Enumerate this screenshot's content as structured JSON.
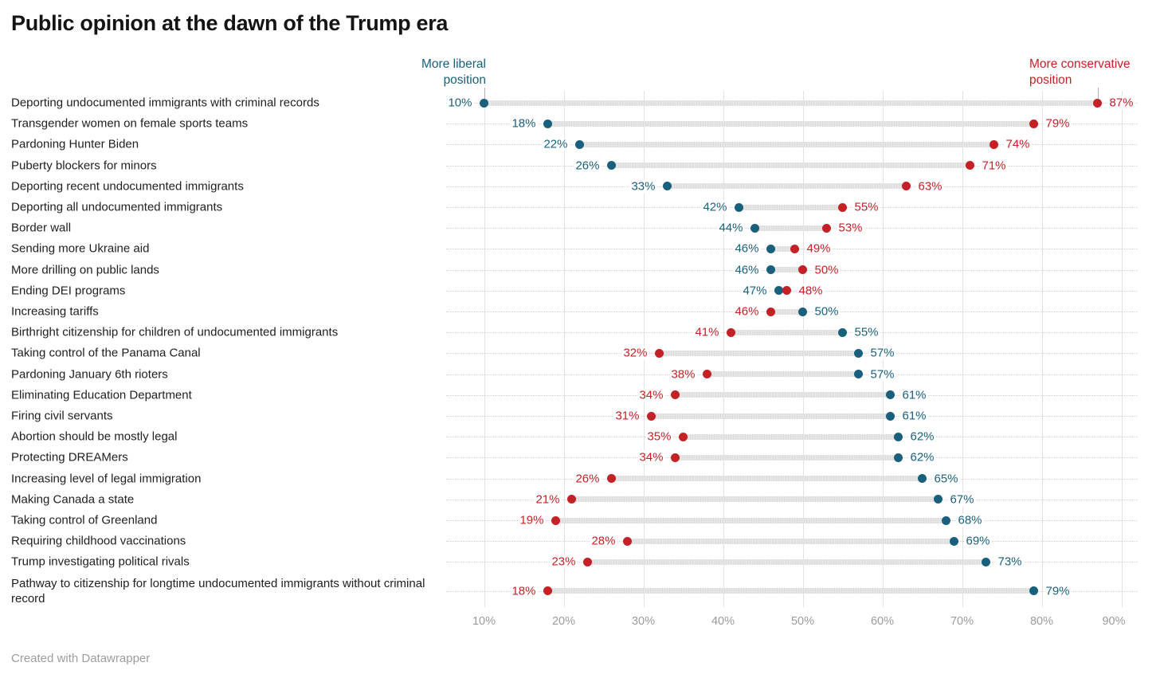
{
  "title": "Public opinion at the dawn of the Trump era",
  "annotations": {
    "liberal": {
      "line1": "More liberal",
      "line2": "position",
      "points_at": 10
    },
    "conservative": {
      "line1": "More conservative",
      "line2": "position",
      "points_at": 87
    }
  },
  "colors": {
    "liberal": "#1a607d",
    "conservative": "#c42127",
    "bar": "#e2e2e2",
    "grid": "#e2e2e2",
    "row_dotted": "#d2d2d2",
    "category_text": "#202020",
    "axis_text": "#9b9b9b",
    "title_text": "#141414",
    "footer_text": "#9d9d9d"
  },
  "footer": {
    "attribution": "Created with Datawrapper"
  },
  "chart_data": {
    "type": "dumbbell",
    "title": "Public opinion at the dawn of the Trump era",
    "x_axis": {
      "min": 10,
      "max": 90,
      "unit": "%",
      "tick_labels": [
        "10%",
        "20%",
        "30%",
        "40%",
        "50%",
        "60%",
        "70%",
        "80%",
        "90%"
      ],
      "grid": true
    },
    "legend": {
      "liberal_label": "More liberal position",
      "conservative_label": "More conservative position"
    },
    "series_names": [
      "More liberal position",
      "More conservative position"
    ],
    "rows": [
      {
        "label": "Deporting undocumented immigrants with criminal records",
        "liberal": 10,
        "conservative": 87
      },
      {
        "label": "Transgender women on female sports teams",
        "liberal": 18,
        "conservative": 79
      },
      {
        "label": "Pardoning Hunter Biden",
        "liberal": 22,
        "conservative": 74
      },
      {
        "label": "Puberty blockers for minors",
        "liberal": 26,
        "conservative": 71
      },
      {
        "label": "Deporting recent undocumented immigrants",
        "liberal": 33,
        "conservative": 63
      },
      {
        "label": "Deporting all undocumented immigrants",
        "liberal": 42,
        "conservative": 55
      },
      {
        "label": "Border wall",
        "liberal": 44,
        "conservative": 53
      },
      {
        "label": "Sending more Ukraine aid",
        "liberal": 46,
        "conservative": 49
      },
      {
        "label": "More drilling on public lands",
        "liberal": 46,
        "conservative": 50
      },
      {
        "label": "Ending DEI programs",
        "liberal": 47,
        "conservative": 48
      },
      {
        "label": "Increasing tariffs",
        "liberal": 50,
        "conservative": 46
      },
      {
        "label": "Birthright citizenship for children of undocumented immigrants",
        "liberal": 55,
        "conservative": 41
      },
      {
        "label": "Taking control of the Panama Canal",
        "liberal": 57,
        "conservative": 32
      },
      {
        "label": "Pardoning January 6th rioters",
        "liberal": 57,
        "conservative": 38
      },
      {
        "label": "Eliminating Education Department",
        "liberal": 61,
        "conservative": 34
      },
      {
        "label": "Firing civil servants",
        "liberal": 61,
        "conservative": 31
      },
      {
        "label": "Abortion should be mostly legal",
        "liberal": 62,
        "conservative": 35
      },
      {
        "label": "Protecting DREAMers",
        "liberal": 62,
        "conservative": 34
      },
      {
        "label": "Increasing level of legal immigration",
        "liberal": 65,
        "conservative": 26
      },
      {
        "label": "Making Canada a state",
        "liberal": 67,
        "conservative": 21
      },
      {
        "label": "Taking control of Greenland",
        "liberal": 68,
        "conservative": 19
      },
      {
        "label": "Requiring childhood vaccinations",
        "liberal": 69,
        "conservative": 28
      },
      {
        "label": "Trump investigating political rivals",
        "liberal": 73,
        "conservative": 23
      },
      {
        "label": "Pathway to citizenship for longtime undocumented immigrants without criminal record",
        "liberal": 79,
        "conservative": 18
      }
    ]
  }
}
